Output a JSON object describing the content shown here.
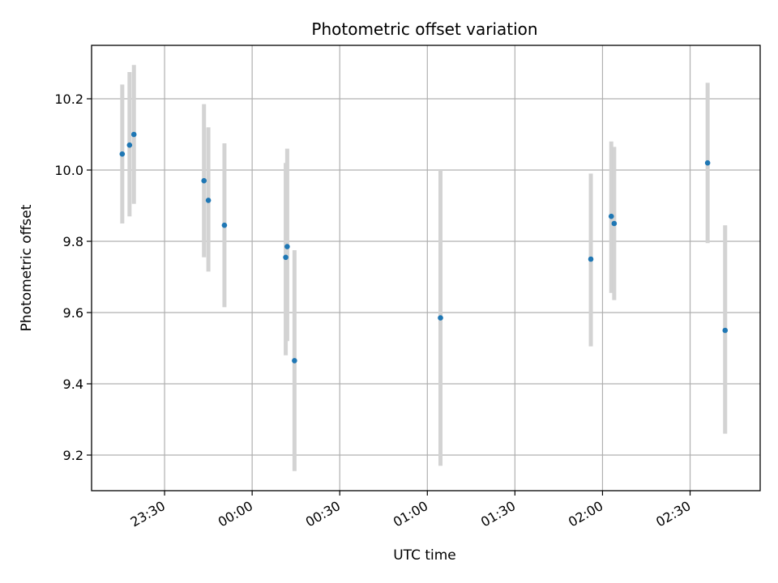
{
  "chart_data": {
    "type": "scatter",
    "title": "Photometric offset variation",
    "xlabel": "UTC time",
    "ylabel": "Photometric offset",
    "x_ticks": [
      "23:30",
      "00:00",
      "00:30",
      "01:00",
      "01:30",
      "02:00",
      "02:30"
    ],
    "y_ticks": [
      "9.2",
      "9.4",
      "9.6",
      "9.8",
      "10.0",
      "10.2"
    ],
    "xlim": [
      "23:05",
      "02:54"
    ],
    "ylim": [
      9.1,
      10.35
    ],
    "grid": true,
    "colors": {
      "points": "#1f77b4",
      "error_bars": "#d3d3d3",
      "grid": "#b0b0b0"
    },
    "points": [
      {
        "time": "23:15:30",
        "y": 10.045,
        "err_low": 9.85,
        "err_high": 10.24
      },
      {
        "time": "23:18:00",
        "y": 10.07,
        "err_low": 9.87,
        "err_high": 10.275
      },
      {
        "time": "23:19:30",
        "y": 10.1,
        "err_low": 9.905,
        "err_high": 10.295
      },
      {
        "time": "23:43:30",
        "y": 9.97,
        "err_low": 9.755,
        "err_high": 10.185
      },
      {
        "time": "23:45:00",
        "y": 9.915,
        "err_low": 9.715,
        "err_high": 10.12
      },
      {
        "time": "23:50:30",
        "y": 9.845,
        "err_low": 9.615,
        "err_high": 10.075
      },
      {
        "time": "00:11:30",
        "y": 9.755,
        "err_low": 9.48,
        "err_high": 10.02
      },
      {
        "time": "00:12:00",
        "y": 9.785,
        "err_low": 9.52,
        "err_high": 10.06
      },
      {
        "time": "00:14:30",
        "y": 9.465,
        "err_low": 9.155,
        "err_high": 9.775
      },
      {
        "time": "01:04:30",
        "y": 9.585,
        "err_low": 9.17,
        "err_high": 10.0
      },
      {
        "time": "01:56:00",
        "y": 9.75,
        "err_low": 9.505,
        "err_high": 9.99
      },
      {
        "time": "02:03:00",
        "y": 9.87,
        "err_low": 9.655,
        "err_high": 10.08
      },
      {
        "time": "02:04:00",
        "y": 9.85,
        "err_low": 9.635,
        "err_high": 10.065
      },
      {
        "time": "02:36:00",
        "y": 10.02,
        "err_low": 9.795,
        "err_high": 10.245
      },
      {
        "time": "02:42:00",
        "y": 9.55,
        "err_low": 9.26,
        "err_high": 9.845
      }
    ]
  }
}
